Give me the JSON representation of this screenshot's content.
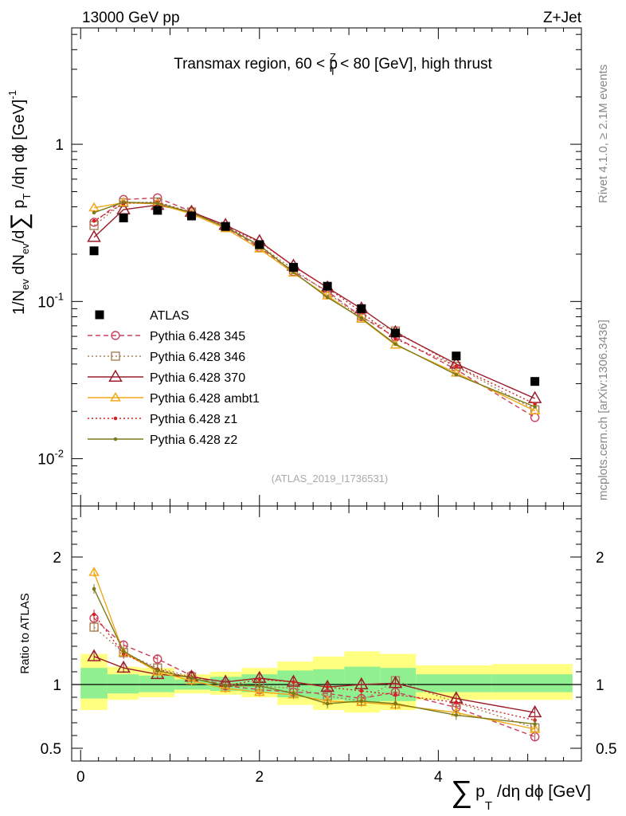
{
  "header": {
    "left": "13000 GeV pp",
    "right": "Z+Jet"
  },
  "side": {
    "rivet": "Rivet 4.1.0, ≥ 2.1M events",
    "mcplots": "mcplots.cern.ch [arXiv:1306.3436]"
  },
  "chart_data": {
    "type": "line",
    "title": "Transmax region, 60 < p_T^Z < 80 [GeV], high thrust",
    "title_main": "Transmax region, 60 < p",
    "title_sup": "Z",
    "title_sub": "T",
    "title_tail": " < 80 [GeV], high thrust",
    "watermark": "(ATLAS_2019_I1736531)",
    "ylabel": "1/N_ev dN_ev/d∑ p_T /dη dϕ [GeV]^-1",
    "ylabel_parts": {
      "a": "1/N",
      "a_sub": "ev",
      "b": " dN",
      "b_sub": "ev",
      "c": "/d",
      "sum": "∑",
      "d": " p",
      "d_sub": "T",
      "e": " /dη dϕ  [GeV]",
      "e_sup": "-1"
    },
    "ratio_ylabel": "Ratio to ATLAS",
    "xlabel": "∑ p_T /dη dϕ [GeV]",
    "xlabel_parts": {
      "sum": "∑",
      "p": "p",
      "p_sub": "T",
      "tail": "/dη dϕ [GeV]"
    },
    "xlim": [
      -0.1,
      5.6
    ],
    "ylim": [
      0.005,
      5.5
    ],
    "yscale": "log",
    "ratio_ylim": [
      0.4,
      2.4
    ],
    "x_ticks": [
      0,
      2,
      4
    ],
    "x_tick_labels": [
      "0",
      "2",
      "4"
    ],
    "y_major": [
      {
        "v": 0.01,
        "base": "10",
        "exp": "-2"
      },
      {
        "v": 0.1,
        "base": "10",
        "exp": "-1"
      },
      {
        "v": 1,
        "base": "1",
        "exp": ""
      }
    ],
    "ratio_ticks": [
      {
        "v": 0.5,
        "label": "0.5"
      },
      {
        "v": 1,
        "label": "1"
      },
      {
        "v": 2,
        "label": "2"
      }
    ],
    "bins": [
      [
        0.0,
        0.3
      ],
      [
        0.3,
        0.65
      ],
      [
        0.65,
        1.05
      ],
      [
        1.05,
        1.45
      ],
      [
        1.45,
        1.8
      ],
      [
        1.8,
        2.2
      ],
      [
        2.2,
        2.6
      ],
      [
        2.6,
        2.95
      ],
      [
        2.95,
        3.35
      ],
      [
        3.35,
        3.75
      ],
      [
        3.75,
        4.6
      ],
      [
        4.6,
        5.5
      ]
    ],
    "x": [
      0.15,
      0.48,
      0.86,
      1.24,
      1.62,
      2.0,
      2.38,
      2.76,
      3.14,
      3.52,
      4.2,
      5.08
    ],
    "data": {
      "name": "ATLAS",
      "values": [
        0.21,
        0.34,
        0.38,
        0.35,
        0.3,
        0.23,
        0.165,
        0.125,
        0.09,
        0.063,
        0.045,
        0.031
      ]
    },
    "band_inner": [
      [
        0.89,
        1.13
      ],
      [
        0.93,
        1.08
      ],
      [
        0.94,
        1.07
      ],
      [
        0.96,
        1.04
      ],
      [
        0.95,
        1.06
      ],
      [
        0.94,
        1.08
      ],
      [
        0.9,
        1.11
      ],
      [
        0.88,
        1.12
      ],
      [
        0.86,
        1.14
      ],
      [
        0.87,
        1.13
      ],
      [
        0.94,
        1.08
      ],
      [
        0.94,
        1.08
      ]
    ],
    "band_outer": [
      [
        0.8,
        1.24
      ],
      [
        0.88,
        1.14
      ],
      [
        0.9,
        1.13
      ],
      [
        0.93,
        1.08
      ],
      [
        0.92,
        1.1
      ],
      [
        0.9,
        1.13
      ],
      [
        0.84,
        1.18
      ],
      [
        0.8,
        1.22
      ],
      [
        0.78,
        1.26
      ],
      [
        0.8,
        1.24
      ],
      [
        0.88,
        1.15
      ],
      [
        0.88,
        1.16
      ]
    ],
    "series": [
      {
        "name": "Pythia 6.428 345",
        "color": "#c8405a",
        "dash": "6,4",
        "marker": "circle",
        "ratio": [
          1.52,
          1.31,
          1.2,
          1.07,
          0.99,
          0.96,
          0.94,
          0.93,
          0.89,
          0.94,
          0.82,
          0.59
        ]
      },
      {
        "name": "Pythia 6.428 346",
        "color": "#a88058",
        "dash": "2,3",
        "marker": "square",
        "ratio": [
          1.45,
          1.25,
          1.13,
          1.06,
          1.0,
          0.99,
          0.97,
          0.91,
          0.87,
          1.03,
          0.86,
          0.66
        ]
      },
      {
        "name": "Pythia 6.428 370",
        "color": "#9a1d2a",
        "dash": "",
        "marker": "triangle",
        "ratio": [
          1.22,
          1.13,
          1.08,
          1.06,
          1.02,
          1.05,
          1.02,
          0.98,
          1.0,
          1.01,
          0.89,
          0.78
        ]
      },
      {
        "name": "Pythia 6.428 ambt1",
        "color": "#f0a818",
        "dash": "",
        "marker": "triangle-filled",
        "ratio": [
          1.88,
          1.25,
          1.1,
          1.03,
          0.97,
          0.94,
          0.92,
          0.87,
          0.86,
          0.84,
          0.78,
          0.65
        ]
      },
      {
        "name": "Pythia 6.428 z1",
        "color": "#d42020",
        "dash": "2,3",
        "marker": "dot",
        "ratio": [
          1.55,
          1.24,
          1.12,
          1.05,
          0.99,
          1.04,
          1.02,
          0.98,
          0.95,
          0.92,
          0.86,
          0.72
        ]
      },
      {
        "name": "Pythia 6.428 z2",
        "color": "#7a7a1a",
        "dash": "",
        "marker": "dot",
        "ratio": [
          1.75,
          1.26,
          1.11,
          1.05,
          0.99,
          0.99,
          0.93,
          0.85,
          0.87,
          0.85,
          0.76,
          0.69
        ]
      }
    ]
  }
}
